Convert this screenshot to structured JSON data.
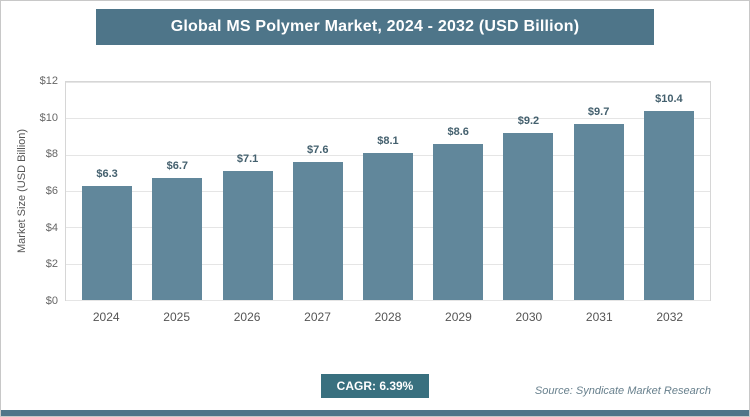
{
  "title": "Global MS Polymer Market, 2024 - 2032 (USD Billion)",
  "chart_data": {
    "type": "bar",
    "title": "Global MS Polymer Market, 2024 - 2032 (USD Billion)",
    "categories": [
      "2024",
      "2025",
      "2026",
      "2027",
      "2028",
      "2029",
      "2030",
      "2031",
      "2032"
    ],
    "values": [
      6.3,
      6.7,
      7.1,
      7.6,
      8.1,
      8.6,
      9.2,
      9.7,
      10.4
    ],
    "value_labels": [
      "$6.3",
      "$6.7",
      "$7.1",
      "$7.6",
      "$8.1",
      "$8.6",
      "$9.2",
      "$9.7",
      "$10.4"
    ],
    "xlabel": "",
    "ylabel": "Market Size (USD Billion)",
    "ylim": [
      0,
      12
    ],
    "ytick_step": 2,
    "ytick_labels": [
      "$0",
      "$2",
      "$4",
      "$6",
      "$8",
      "$10",
      "$12"
    ],
    "grid": true,
    "legend": "none"
  },
  "footer": {
    "cagr_label": "CAGR: 6.39%",
    "source": "Source: Syndicate Market Research"
  },
  "colors": {
    "title_bg": "#4e7589",
    "bar": "#61879b",
    "cagr_bg": "#39707f",
    "accent_strip": "#4e7589"
  }
}
